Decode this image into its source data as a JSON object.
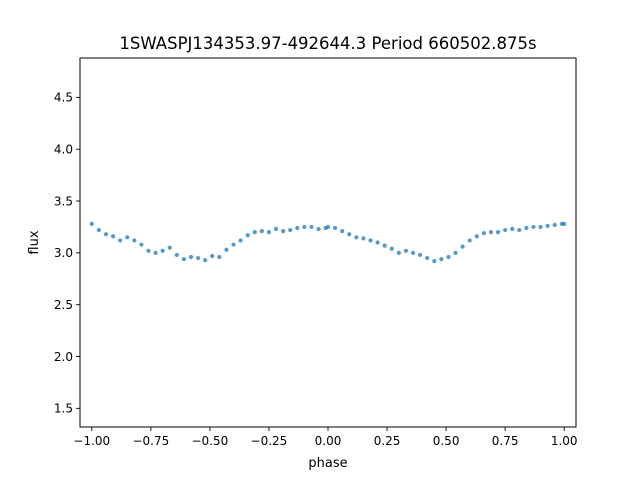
{
  "chart_data": {
    "type": "scatter",
    "title": "1SWASPJ134353.97-492644.3 Period 660502.875s",
    "xlabel": "phase",
    "ylabel": "flux",
    "xlim": [
      -1.05,
      1.05
    ],
    "ylim": [
      1.32,
      4.88
    ],
    "grid": false,
    "legend": "none",
    "marker_color": "#1f77b4",
    "x_ticks": [
      {
        "value": -1.0,
        "label": "−1.00"
      },
      {
        "value": -0.75,
        "label": "−0.75"
      },
      {
        "value": -0.5,
        "label": "−0.50"
      },
      {
        "value": -0.25,
        "label": "−0.25"
      },
      {
        "value": 0.0,
        "label": "0.00"
      },
      {
        "value": 0.25,
        "label": "0.25"
      },
      {
        "value": 0.5,
        "label": "0.50"
      },
      {
        "value": 0.75,
        "label": "0.75"
      },
      {
        "value": 1.0,
        "label": "1.00"
      }
    ],
    "y_ticks": [
      {
        "value": 1.5,
        "label": "1.5"
      },
      {
        "value": 2.0,
        "label": "2.0"
      },
      {
        "value": 2.5,
        "label": "2.5"
      },
      {
        "value": 3.0,
        "label": "3.0"
      },
      {
        "value": 3.5,
        "label": "3.5"
      },
      {
        "value": 4.0,
        "label": "4.0"
      },
      {
        "value": 4.5,
        "label": "4.5"
      }
    ],
    "series": [
      {
        "points": [
          [
            -1.0,
            3.28
          ],
          [
            -0.97,
            3.22
          ],
          [
            -0.94,
            3.18
          ],
          [
            -0.91,
            3.16
          ],
          [
            -0.88,
            3.12
          ],
          [
            -0.85,
            3.15
          ],
          [
            -0.82,
            3.12
          ],
          [
            -0.79,
            3.08
          ],
          [
            -0.76,
            3.02
          ],
          [
            -0.73,
            3.0
          ],
          [
            -0.7,
            3.02
          ],
          [
            -0.67,
            3.05
          ],
          [
            -0.64,
            2.98
          ],
          [
            -0.61,
            2.94
          ],
          [
            -0.58,
            2.96
          ],
          [
            -0.55,
            2.95
          ],
          [
            -0.52,
            2.93
          ],
          [
            -0.49,
            2.97
          ],
          [
            -0.46,
            2.96
          ],
          [
            -0.43,
            3.03
          ],
          [
            -0.4,
            3.08
          ],
          [
            -0.37,
            3.12
          ],
          [
            -0.34,
            3.17
          ],
          [
            -0.31,
            3.2
          ],
          [
            -0.28,
            3.21
          ],
          [
            -0.25,
            3.2
          ],
          [
            -0.22,
            3.23
          ],
          [
            -0.19,
            3.21
          ],
          [
            -0.16,
            3.22
          ],
          [
            -0.13,
            3.24
          ],
          [
            -0.1,
            3.25
          ],
          [
            -0.07,
            3.25
          ],
          [
            -0.04,
            3.23
          ],
          [
            -0.01,
            3.24
          ],
          [
            0.0,
            3.25
          ],
          [
            0.03,
            3.24
          ],
          [
            0.06,
            3.21
          ],
          [
            0.09,
            3.18
          ],
          [
            0.12,
            3.15
          ],
          [
            0.15,
            3.14
          ],
          [
            0.18,
            3.12
          ],
          [
            0.21,
            3.1
          ],
          [
            0.24,
            3.07
          ],
          [
            0.27,
            3.04
          ],
          [
            0.3,
            3.0
          ],
          [
            0.33,
            3.02
          ],
          [
            0.36,
            3.0
          ],
          [
            0.39,
            2.98
          ],
          [
            0.42,
            2.95
          ],
          [
            0.45,
            2.92
          ],
          [
            0.48,
            2.94
          ],
          [
            0.51,
            2.96
          ],
          [
            0.54,
            3.0
          ],
          [
            0.57,
            3.06
          ],
          [
            0.6,
            3.12
          ],
          [
            0.63,
            3.16
          ],
          [
            0.66,
            3.19
          ],
          [
            0.69,
            3.2
          ],
          [
            0.72,
            3.2
          ],
          [
            0.75,
            3.22
          ],
          [
            0.78,
            3.23
          ],
          [
            0.81,
            3.22
          ],
          [
            0.84,
            3.24
          ],
          [
            0.87,
            3.25
          ],
          [
            0.9,
            3.25
          ],
          [
            0.93,
            3.26
          ],
          [
            0.96,
            3.27
          ],
          [
            0.99,
            3.28
          ],
          [
            1.0,
            3.28
          ]
        ]
      }
    ]
  }
}
